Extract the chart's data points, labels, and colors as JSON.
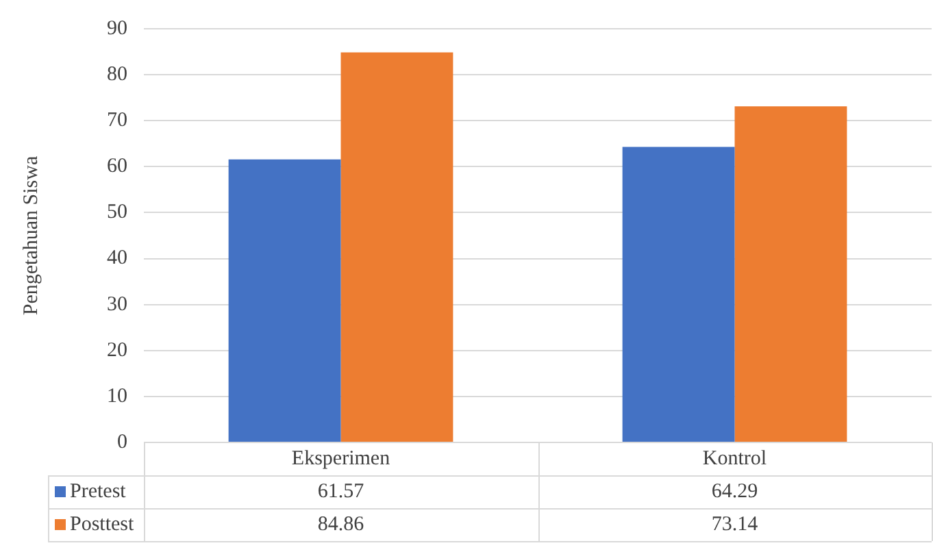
{
  "chart_data": {
    "type": "bar",
    "ylabel": "Pengetahuan Siswa",
    "categories": [
      "Eksperimen",
      "Kontrol"
    ],
    "series": [
      {
        "name": "Pretest",
        "color": "#4472c4",
        "values": [
          61.57,
          64.29
        ]
      },
      {
        "name": "Posttest",
        "color": "#ed7d31",
        "values": [
          84.86,
          73.14
        ]
      }
    ],
    "ylim": [
      0,
      90
    ],
    "yticks": [
      0,
      10,
      20,
      30,
      40,
      50,
      60,
      70,
      80,
      90
    ],
    "grid": "y",
    "legend": "bottom",
    "data_labels": true
  }
}
